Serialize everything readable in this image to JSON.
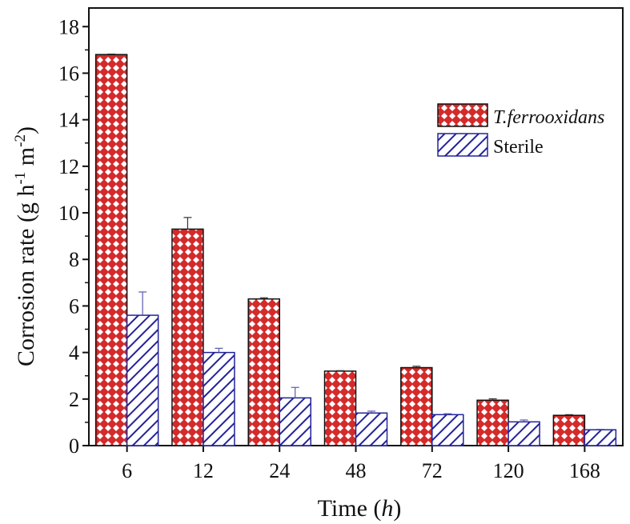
{
  "chart_data": {
    "type": "bar",
    "categories": [
      "6",
      "12",
      "24",
      "48",
      "72",
      "120",
      "168"
    ],
    "series": [
      {
        "name": "T.ferrooxidans",
        "values": [
          16.8,
          9.3,
          6.3,
          3.2,
          3.35,
          1.95,
          1.3
        ],
        "errors": [
          0.02,
          0.5,
          0.05,
          0.02,
          0.06,
          0.06,
          0.03
        ],
        "fill": "#d42a2a",
        "pattern": "crosshatch-diamond",
        "edge": "#111111"
      },
      {
        "name": "Sterile",
        "values": [
          5.6,
          4.0,
          2.05,
          1.4,
          1.33,
          1.02,
          0.68
        ],
        "errors": [
          1.0,
          0.18,
          0.45,
          0.08,
          0.04,
          0.08,
          0.02
        ],
        "fill": "#ffffff",
        "pattern": "diagonal-hatch",
        "edge": "#23239a"
      }
    ],
    "y_ticks": [
      "0",
      "2",
      "4",
      "6",
      "8",
      "10",
      "12",
      "14",
      "16",
      "18"
    ],
    "ylim": [
      0,
      18.8
    ],
    "xlabel_main": "Time (",
    "xlabel_unit": "h",
    "xlabel_close": ")",
    "ylabel": "Corrosion rate (g h",
    "ylabel_sup1": "-1",
    "ylabel_mid": " m",
    "ylabel_sup2": "-2",
    "ylabel_close": ")",
    "legend_position": "top-right",
    "grid": false,
    "colors": {
      "red": "#d42a2a",
      "blue": "#23239a",
      "axis": "#111111"
    }
  }
}
